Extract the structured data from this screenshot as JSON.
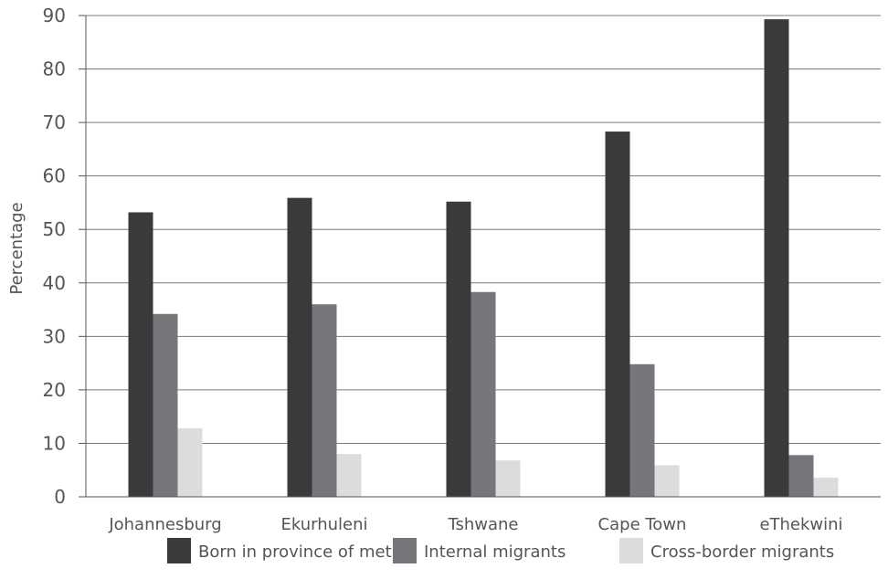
{
  "chart_data": {
    "type": "bar",
    "title": "",
    "xlabel": "",
    "ylabel": "Percentage",
    "ylim": [
      0,
      90
    ],
    "yticks": [
      0,
      10,
      20,
      30,
      40,
      50,
      60,
      70,
      80,
      90
    ],
    "grid": true,
    "legend_position": "bottom",
    "categories": [
      "Johannesburg",
      "Ekurhuleni",
      "Tshwane",
      "Cape Town",
      "eThekwini"
    ],
    "series": [
      {
        "name": "Born in province of metro",
        "color": "#3a3a3a",
        "values": [
          53.2,
          55.9,
          55.2,
          68.3,
          89.3
        ]
      },
      {
        "name": "Internal migrants",
        "color": "#77777b",
        "values": [
          34.2,
          36.0,
          38.3,
          24.8,
          7.8
        ]
      },
      {
        "name": "Cross-border migrants",
        "color": "#dcdcdc",
        "values": [
          12.8,
          8.0,
          6.8,
          5.9,
          3.6
        ]
      }
    ]
  }
}
